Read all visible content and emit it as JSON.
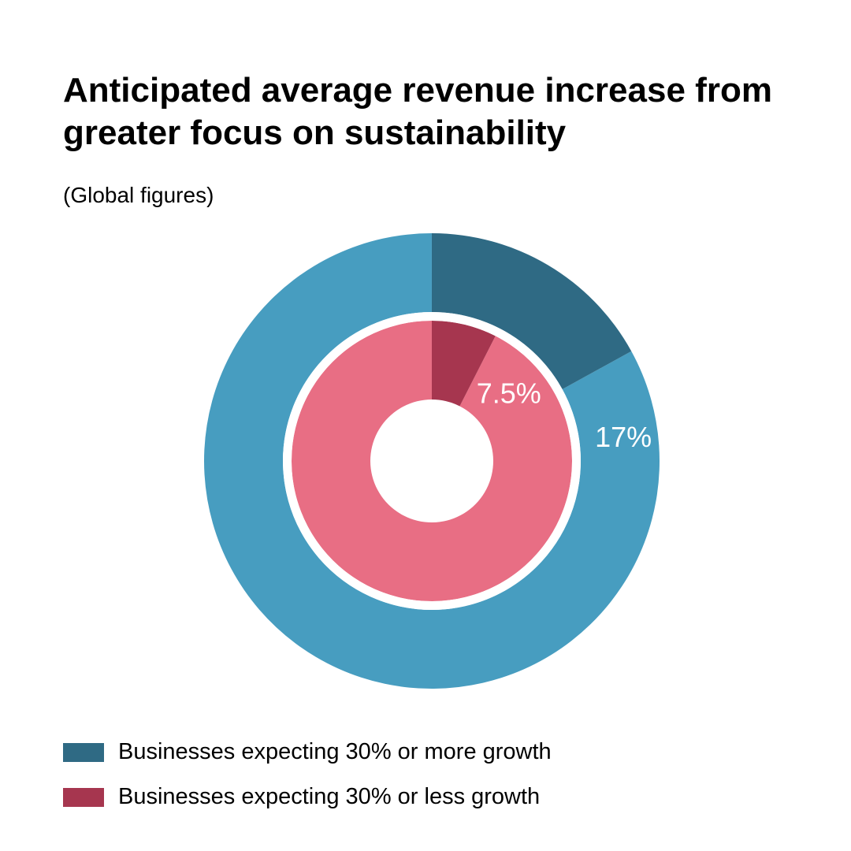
{
  "chart_data": {
    "type": "pie",
    "subtype": "nested-donut",
    "title": "Anticipated average revenue increase from greater focus on sustainability",
    "subtitle": "(Global figures)",
    "rings": [
      {
        "ring": "outer",
        "series": "Businesses expecting 30% or more growth",
        "value": 17,
        "label": "17%",
        "color": "#2f6a84",
        "remainder_color": "#479dc0"
      },
      {
        "ring": "inner",
        "series": "Businesses expecting 30% or less growth",
        "value": 7.5,
        "label": "7.5%",
        "color": "#a6364f",
        "remainder_color": "#e86e84"
      }
    ],
    "legend": [
      {
        "label": "Businesses expecting 30% or more growth",
        "color": "#2f6a84"
      },
      {
        "label": "Businesses expecting 30% or less growth",
        "color": "#a6364f"
      }
    ],
    "legend_position": "bottom-left"
  }
}
